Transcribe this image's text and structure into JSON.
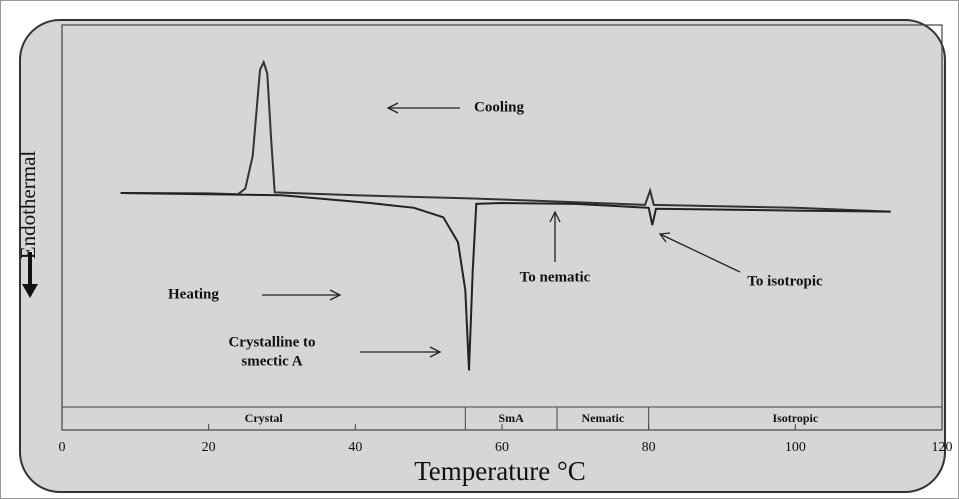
{
  "chart_data": {
    "type": "line",
    "ylabel": "Endothermal",
    "xlabel": "Temperature °C",
    "xlim": [
      0,
      120
    ],
    "xticks": [
      0,
      20,
      40,
      60,
      80,
      100,
      120
    ],
    "ylim": [
      -10,
      10
    ],
    "series": [
      {
        "name": "Cooling",
        "color": "#333333",
        "x": [
          8,
          20,
          24,
          25,
          26,
          27,
          27.5,
          28,
          28.5,
          29,
          40,
          55,
          66,
          79.5,
          80.2,
          80.7,
          100,
          113
        ],
        "values": [
          1.07,
          1.05,
          1.0,
          1.3,
          3,
          7.5,
          7.9,
          7.3,
          4,
          1.1,
          0.95,
          0.8,
          0.65,
          0.45,
          1.2,
          0.45,
          0.3,
          0.1
        ]
      },
      {
        "name": "Heating",
        "color": "#222222",
        "x": [
          8,
          30,
          42,
          48,
          52,
          54,
          55,
          55.5,
          56,
          56.5,
          60,
          70,
          80,
          80.5,
          81,
          100,
          113
        ],
        "values": [
          1.07,
          0.95,
          0.55,
          0.3,
          -0.2,
          -1.5,
          -4,
          -8.2,
          -3,
          0.5,
          0.55,
          0.5,
          0.3,
          -0.6,
          0.25,
          0.15,
          0.1
        ]
      }
    ],
    "annotations": {
      "crystalline": [
        "Crystalline to",
        "smectic A"
      ],
      "nematic": "To nematic",
      "isotropic": "To isotropic"
    },
    "phases": [
      {
        "label": "Crystal",
        "start": 0,
        "end": 55
      },
      {
        "label": "SmA",
        "start": 55,
        "end": 67.5
      },
      {
        "label": "Nematic",
        "start": 67.5,
        "end": 80
      },
      {
        "label": "Isotropic",
        "start": 80,
        "end": 120
      }
    ]
  }
}
